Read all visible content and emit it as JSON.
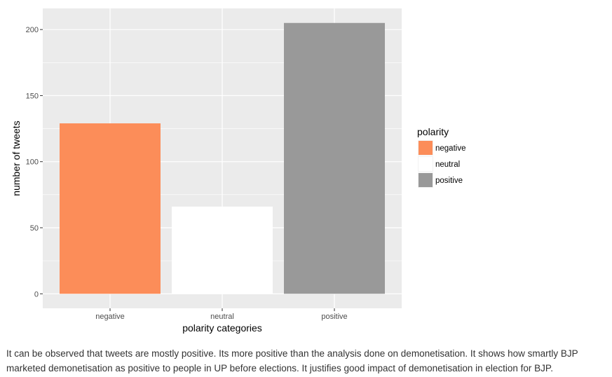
{
  "chart_data": {
    "type": "bar",
    "categories": [
      "negative",
      "neutral",
      "positive"
    ],
    "values": [
      129,
      66,
      205
    ],
    "colors": [
      "#fc8d59",
      "#ffffff",
      "#999999"
    ],
    "panel_background": "#ebebeb",
    "grid": true,
    "grid_color": "#ffffff",
    "xlabel": "polarity categories",
    "ylabel": "number of tweets",
    "ylim": [
      -11,
      216
    ],
    "yticks": [
      0,
      50,
      100,
      150,
      200
    ],
    "legend": {
      "title": "polarity",
      "position": "right",
      "entries": [
        "negative",
        "neutral",
        "positive"
      ]
    }
  },
  "caption": {
    "line1": "It can be observed that tweets are mostly positive. Its more positive than the analysis done on demonetisation. It shows how smartly BJP",
    "line2": "marketed demonetisation as positive to people in UP before elections. It justifies good impact of demonetisation in election for BJP."
  }
}
